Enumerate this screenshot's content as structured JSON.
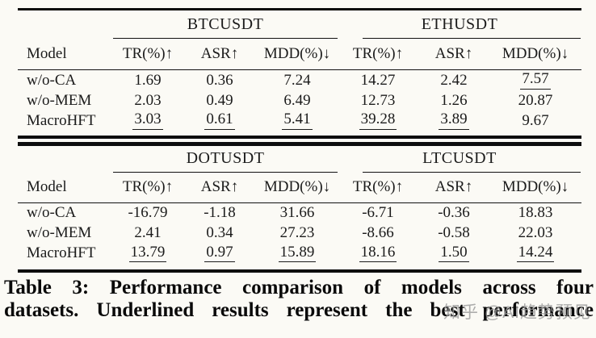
{
  "page": {
    "background": "#fbfaf5"
  },
  "colors": {
    "rule": "#0d0d0d",
    "text": "#1b1b1b",
    "watermark": "#9a9a9a"
  },
  "table": {
    "panels": [
      {
        "groups": [
          "BTCUSDT",
          "ETHUSDT"
        ],
        "model_header": "Model",
        "metric_headers": [
          "TR(%)↑",
          "ASR↑",
          "MDD(%)↓",
          "TR(%)↑",
          "ASR↑",
          "MDD(%)↓"
        ],
        "rows": [
          {
            "model": "w/o-CA",
            "values": [
              {
                "v": "1.69",
                "best": false
              },
              {
                "v": "0.36",
                "best": false
              },
              {
                "v": "7.24",
                "best": false
              },
              {
                "v": "14.27",
                "best": false
              },
              {
                "v": "2.42",
                "best": false
              },
              {
                "v": "7.57",
                "best": true
              }
            ]
          },
          {
            "model": "w/o-MEM",
            "values": [
              {
                "v": "2.03",
                "best": false
              },
              {
                "v": "0.49",
                "best": false
              },
              {
                "v": "6.49",
                "best": false
              },
              {
                "v": "12.73",
                "best": false
              },
              {
                "v": "1.26",
                "best": false
              },
              {
                "v": "20.87",
                "best": false
              }
            ]
          },
          {
            "model": "MacroHFT",
            "values": [
              {
                "v": "3.03",
                "best": true
              },
              {
                "v": "0.61",
                "best": true
              },
              {
                "v": "5.41",
                "best": true
              },
              {
                "v": "39.28",
                "best": true
              },
              {
                "v": "3.89",
                "best": true
              },
              {
                "v": "9.67",
                "best": false
              }
            ]
          }
        ]
      },
      {
        "groups": [
          "DOTUSDT",
          "LTCUSDT"
        ],
        "model_header": "Model",
        "metric_headers": [
          "TR(%)↑",
          "ASR↑",
          "MDD(%)↓",
          "TR(%)↑",
          "ASR↑",
          "MDD(%)↓"
        ],
        "rows": [
          {
            "model": "w/o-CA",
            "values": [
              {
                "v": "-16.79",
                "best": false
              },
              {
                "v": "-1.18",
                "best": false
              },
              {
                "v": "31.66",
                "best": false
              },
              {
                "v": "-6.71",
                "best": false
              },
              {
                "v": "-0.36",
                "best": false
              },
              {
                "v": "18.83",
                "best": false
              }
            ]
          },
          {
            "model": "w/o-MEM",
            "values": [
              {
                "v": "2.41",
                "best": false
              },
              {
                "v": "0.34",
                "best": false
              },
              {
                "v": "27.23",
                "best": false
              },
              {
                "v": "-8.66",
                "best": false
              },
              {
                "v": "-0.58",
                "best": false
              },
              {
                "v": "22.03",
                "best": false
              }
            ]
          },
          {
            "model": "MacroHFT",
            "values": [
              {
                "v": "13.79",
                "best": true
              },
              {
                "v": "0.97",
                "best": true
              },
              {
                "v": "15.89",
                "best": true
              },
              {
                "v": "18.16",
                "best": true
              },
              {
                "v": "1.50",
                "best": true
              },
              {
                "v": "14.24",
                "best": true
              }
            ]
          }
        ]
      }
    ]
  },
  "caption": {
    "line1": "Table 3: Performance comparison of models across four",
    "line2": "datasets. Underlined results represent the best performance"
  },
  "watermark": "知乎 @AI趋势预见"
}
